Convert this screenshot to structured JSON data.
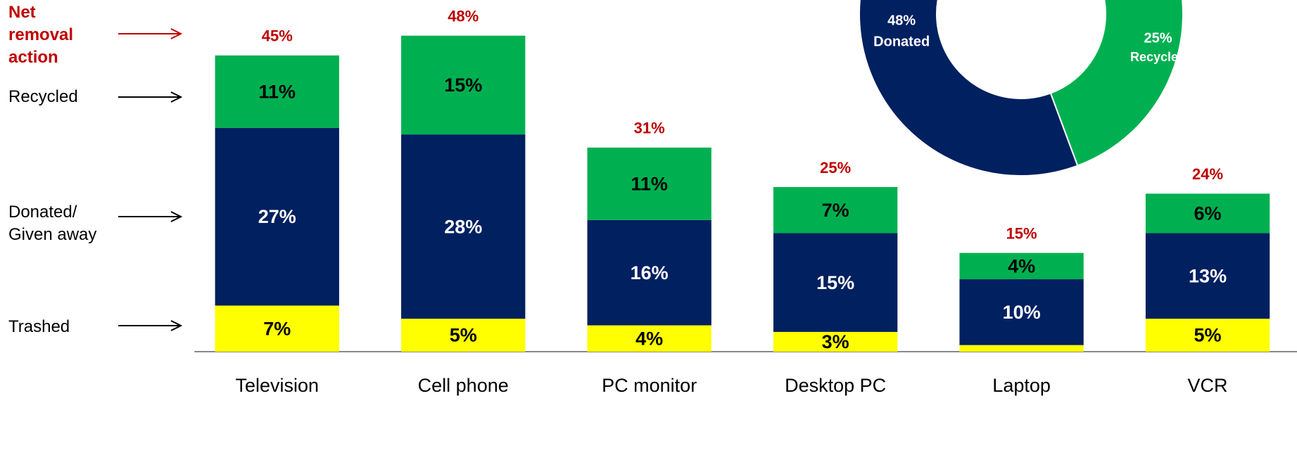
{
  "chart_data": [
    {
      "type": "stacked_bar",
      "categories": [
        "Television",
        "Cell phone",
        "PC monitor",
        "Desktop PC",
        "Laptop",
        "VCR"
      ],
      "series": [
        {
          "name": "Trashed",
          "color": "#ffff00",
          "label_color": "#000000",
          "values": [
            7,
            5,
            4,
            3,
            1,
            5
          ],
          "value_labels": [
            "7%",
            "5%",
            "4%",
            "3%",
            null,
            "5%"
          ]
        },
        {
          "name": "Donated/ Given away",
          "color": "#002060",
          "label_color": "#ffffff",
          "values": [
            27,
            28,
            16,
            15,
            10,
            13
          ],
          "value_labels": [
            "27%",
            "28%",
            "16%",
            "15%",
            "10%",
            "13%"
          ]
        },
        {
          "name": "Recycled",
          "color": "#00b050",
          "label_color": "#000000",
          "values": [
            11,
            15,
            11,
            7,
            4,
            6
          ],
          "value_labels": [
            "11%",
            "15%",
            "11%",
            "7%",
            "4%",
            "6%"
          ]
        }
      ],
      "totals": {
        "name": "Net removal action",
        "color": "#c00000",
        "values": [
          45,
          48,
          31,
          25,
          15,
          24
        ],
        "value_labels": [
          "45%",
          "48%",
          "31%",
          "25%",
          "15%",
          "24%"
        ]
      }
    },
    {
      "type": "donut",
      "categories": [
        "Recycled",
        "Donated"
      ],
      "values": [
        25,
        48
      ],
      "value_labels": [
        "25%",
        "48%"
      ],
      "colors": [
        "#00b050",
        "#002060"
      ]
    }
  ]
}
